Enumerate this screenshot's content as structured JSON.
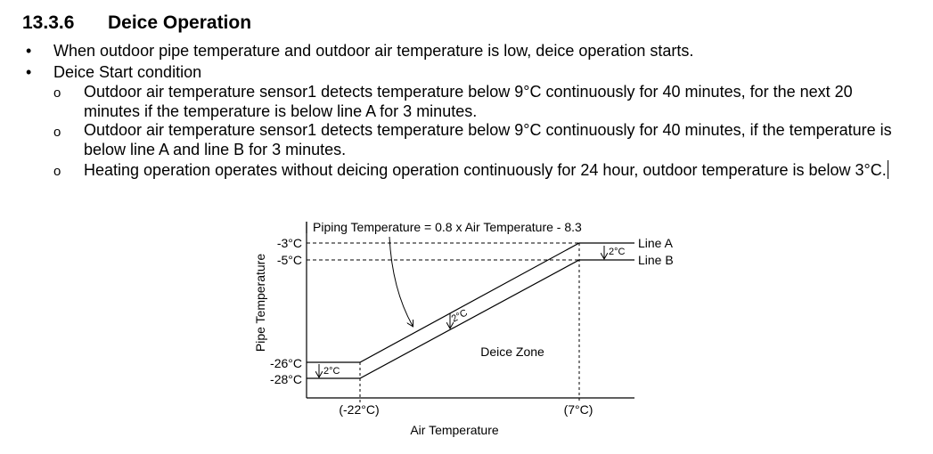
{
  "section": {
    "number": "13.3.6",
    "title": "Deice Operation"
  },
  "bullets": [
    {
      "marker": "•",
      "text": "When outdoor pipe temperature and outdoor air temperature is low, deice operation starts."
    },
    {
      "marker": "•",
      "text": "Deice Start condition"
    }
  ],
  "sub_bullets": [
    {
      "marker": "o",
      "text": "Outdoor air temperature sensor1 detects temperature below 9°C continuously for 40 minutes, for the next 20 minutes if the temperature is below line A for 3 minutes."
    },
    {
      "marker": "o",
      "text": "Outdoor air temperature sensor1 detects temperature below 9°C continuously for 40 minutes, if the temperature is below line A and line B for 3 minutes."
    },
    {
      "marker": "o",
      "text": "Heating operation operates without deicing operation continuously for 24 hour, outdoor temperature is below 3°C."
    }
  ],
  "diagram": {
    "formula": "Piping Temperature = 0.8 x Air Temperature - 8.3",
    "y_axis_label": "Pipe Temperature",
    "x_axis_label": "Air Temperature",
    "y_ticks": [
      "-3°C",
      "-5°C",
      "-26°C",
      "-28°C"
    ],
    "x_ticks": [
      "(-22°C)",
      "(7°C)"
    ],
    "line_a_label": "Line A",
    "line_b_label": "Line B",
    "zone_label": "Deice Zone",
    "offset_label": "2°C"
  }
}
